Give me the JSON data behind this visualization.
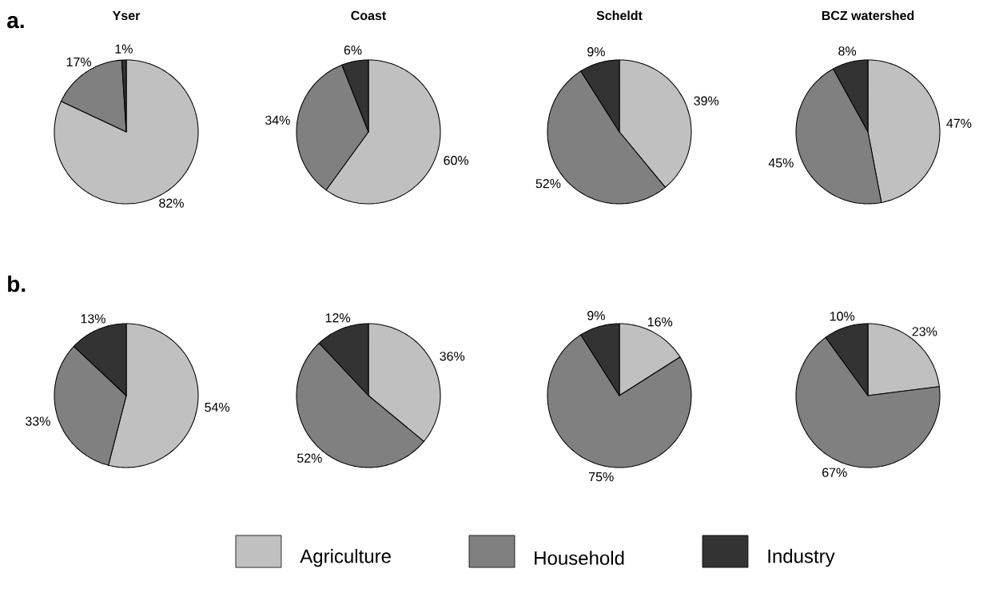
{
  "chart_data": [
    {
      "type": "pie",
      "title": "Yser",
      "annotations": [
        "a."
      ],
      "categories": [
        null,
        null,
        null
      ],
      "values": [
        82,
        17,
        1
      ],
      "value_labels": [
        "82%",
        "17%",
        "1%"
      ],
      "colors": [
        "#c0c0c0",
        "#808080",
        "#333333"
      ]
    },
    {
      "type": "pie",
      "title": "Coast",
      "categories": [
        null,
        null,
        null
      ],
      "values": [
        60,
        34,
        6
      ],
      "value_labels": [
        "60%",
        "34%",
        "6%"
      ],
      "colors": [
        "#c0c0c0",
        "#808080",
        "#333333"
      ]
    },
    {
      "type": "pie",
      "title": "Scheldt",
      "categories": [
        null,
        null,
        null
      ],
      "values": [
        39,
        52,
        9
      ],
      "value_labels": [
        "39%",
        "52%",
        "9%"
      ],
      "colors": [
        "#c0c0c0",
        "#808080",
        "#333333"
      ]
    },
    {
      "type": "pie",
      "title": "BCZ watershed",
      "categories": [
        null,
        null,
        null
      ],
      "values": [
        47,
        45,
        8
      ],
      "value_labels": [
        "47%",
        "45%",
        "8%"
      ],
      "colors": [
        "#c0c0c0",
        "#808080",
        "#333333"
      ]
    },
    {
      "type": "pie",
      "annotations": [
        "b."
      ],
      "categories": [
        null,
        null,
        null
      ],
      "values": [
        54,
        33,
        13
      ],
      "value_labels": [
        "54%",
        "33%",
        "13%"
      ],
      "colors": [
        "#c0c0c0",
        "#808080",
        "#333333"
      ]
    },
    {
      "type": "pie",
      "categories": [
        null,
        null,
        null
      ],
      "values": [
        36,
        52,
        12
      ],
      "value_labels": [
        "36%",
        "52%",
        "12%"
      ],
      "colors": [
        "#c0c0c0",
        "#808080",
        "#333333"
      ]
    },
    {
      "type": "pie",
      "categories": [
        null,
        null,
        null
      ],
      "values": [
        16,
        75,
        9
      ],
      "value_labels": [
        "16%",
        "75%",
        "9%"
      ],
      "colors": [
        "#c0c0c0",
        "#808080",
        "#333333"
      ]
    },
    {
      "type": "pie",
      "legend": "bottom",
      "categories": [
        "Agriculture",
        "Household",
        "Industry"
      ],
      "values": [
        23,
        67,
        10
      ],
      "value_labels": [
        "23%",
        "67%",
        "10%"
      ],
      "colors": [
        "#c0c0c0",
        "#808080",
        "#333333"
      ]
    }
  ]
}
